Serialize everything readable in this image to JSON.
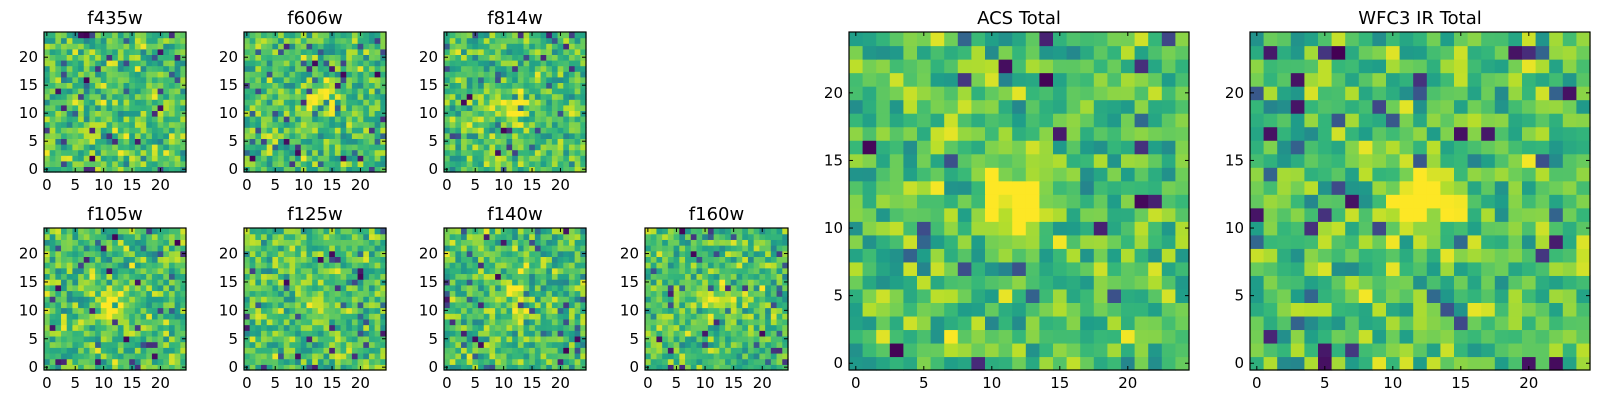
{
  "chart_data": [
    {
      "type": "heatmap",
      "title": "f435w",
      "x_ticks": [
        0,
        5,
        10,
        15,
        20
      ],
      "y_ticks": [
        0,
        5,
        10,
        15,
        20
      ],
      "xlim": [
        -0.5,
        24.5
      ],
      "ylim": [
        -0.5,
        24.5
      ],
      "grid": false,
      "colormap": "viridis",
      "seed": 11,
      "blob": {
        "cx": 12,
        "cy": 12,
        "strength": 0.05
      }
    },
    {
      "type": "heatmap",
      "title": "f606w",
      "x_ticks": [
        0,
        5,
        10,
        15,
        20
      ],
      "y_ticks": [
        0,
        5,
        10,
        15,
        20
      ],
      "xlim": [
        -0.5,
        24.5
      ],
      "ylim": [
        -0.5,
        24.5
      ],
      "grid": false,
      "colormap": "viridis",
      "seed": 23,
      "blob": {
        "cx": 13,
        "cy": 12,
        "strength": 0.3
      }
    },
    {
      "type": "heatmap",
      "title": "f814w",
      "x_ticks": [
        0,
        5,
        10,
        15,
        20
      ],
      "y_ticks": [
        0,
        5,
        10,
        15,
        20
      ],
      "xlim": [
        -0.5,
        24.5
      ],
      "ylim": [
        -0.5,
        24.5
      ],
      "grid": false,
      "colormap": "viridis",
      "seed": 37,
      "blob": {
        "cx": 12,
        "cy": 11,
        "strength": 0.35
      }
    },
    {
      "type": "heatmap",
      "title": "f105w",
      "x_ticks": [
        0,
        5,
        10,
        15,
        20
      ],
      "y_ticks": [
        0,
        5,
        10,
        15,
        20
      ],
      "xlim": [
        -0.5,
        24.5
      ],
      "ylim": [
        -0.5,
        24.5
      ],
      "grid": false,
      "colormap": "viridis",
      "seed": 41,
      "blob": {
        "cx": 12,
        "cy": 11,
        "strength": 0.3
      }
    },
    {
      "type": "heatmap",
      "title": "f125w",
      "x_ticks": [
        0,
        5,
        10,
        15,
        20
      ],
      "y_ticks": [
        0,
        5,
        10,
        15,
        20
      ],
      "xlim": [
        -0.5,
        24.5
      ],
      "ylim": [
        -0.5,
        24.5
      ],
      "grid": false,
      "colormap": "viridis",
      "seed": 53,
      "blob": {
        "cx": 12,
        "cy": 12,
        "strength": 0.15
      }
    },
    {
      "type": "heatmap",
      "title": "f140w",
      "x_ticks": [
        0,
        5,
        10,
        15,
        20
      ],
      "y_ticks": [
        0,
        5,
        10,
        15,
        20
      ],
      "xlim": [
        -0.5,
        24.5
      ],
      "ylim": [
        -0.5,
        24.5
      ],
      "grid": false,
      "colormap": "viridis",
      "seed": 67,
      "blob": {
        "cx": 12,
        "cy": 13,
        "strength": 0.25
      }
    },
    {
      "type": "heatmap",
      "title": "f160w",
      "x_ticks": [
        0,
        5,
        10,
        15,
        20
      ],
      "y_ticks": [
        0,
        5,
        10,
        15,
        20
      ],
      "xlim": [
        -0.5,
        24.5
      ],
      "ylim": [
        -0.5,
        24.5
      ],
      "grid": false,
      "colormap": "viridis",
      "seed": 79,
      "blob": {
        "cx": 12,
        "cy": 12,
        "strength": 0.3
      }
    },
    {
      "type": "heatmap",
      "title": "ACS Total",
      "x_ticks": [
        0,
        5,
        10,
        15,
        20
      ],
      "y_ticks": [
        0,
        5,
        10,
        15,
        20
      ],
      "xlim": [
        -0.5,
        24.5
      ],
      "ylim": [
        -0.5,
        24.5
      ],
      "grid": false,
      "colormap": "viridis",
      "seed": 97,
      "blob": {
        "cx": 12,
        "cy": 12,
        "strength": 0.45
      }
    },
    {
      "type": "heatmap",
      "title": "WFC3 IR Total",
      "x_ticks": [
        0,
        5,
        10,
        15,
        20
      ],
      "y_ticks": [
        0,
        5,
        10,
        15,
        20
      ],
      "xlim": [
        -0.5,
        24.5
      ],
      "ylim": [
        -0.5,
        24.5
      ],
      "grid": false,
      "colormap": "viridis",
      "seed": 113,
      "blob": {
        "cx": 12,
        "cy": 12,
        "strength": 0.5
      }
    }
  ]
}
